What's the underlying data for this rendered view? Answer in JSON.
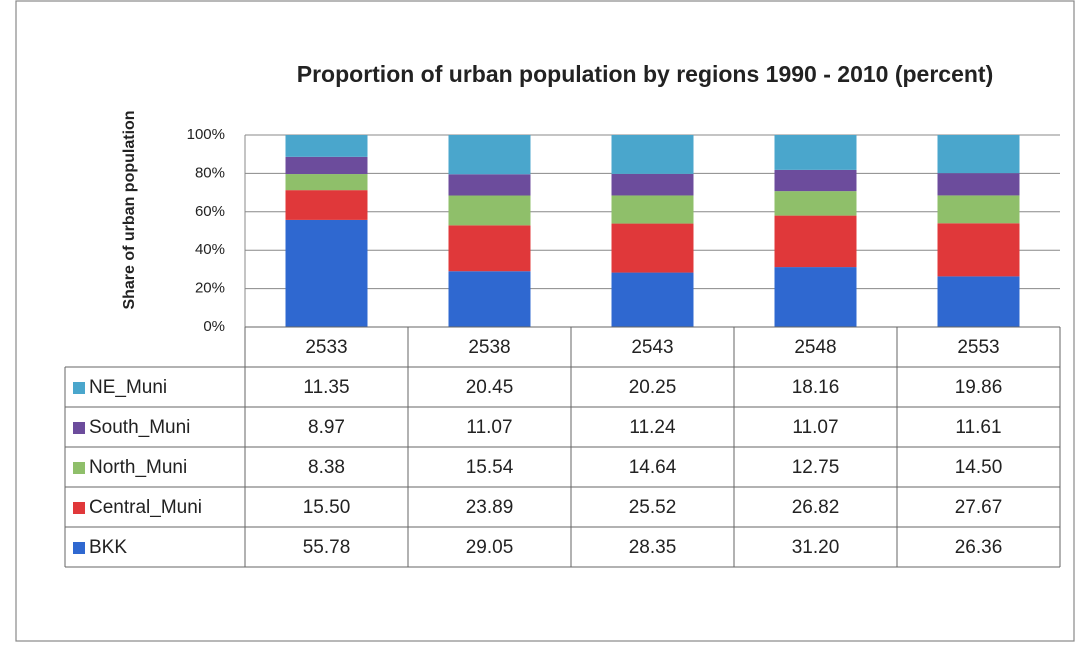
{
  "chart_data": {
    "type": "stacked-bar",
    "title": "Proportion of urban population  by regions 1990 - 2010 (percent)",
    "y_label": "Share of urban population",
    "categories": [
      "2533",
      "2538",
      "2543",
      "2548",
      "2553"
    ],
    "series": [
      {
        "name": "NE_Muni",
        "color": "#4aa6cc",
        "values": [
          11.35,
          20.45,
          20.25,
          18.16,
          19.86
        ],
        "value_labels": [
          "11.35",
          "20.45",
          "20.25",
          "18.16",
          "19.86"
        ]
      },
      {
        "name": "South_Muni",
        "color": "#6c4c9c",
        "values": [
          8.97,
          11.07,
          11.24,
          11.07,
          11.61
        ],
        "value_labels": [
          "8.97",
          "11.07",
          "11.24",
          "11.07",
          "11.61"
        ]
      },
      {
        "name": "North_Muni",
        "color": "#8fbf6a",
        "values": [
          8.38,
          15.54,
          14.64,
          12.75,
          14.5
        ],
        "value_labels": [
          "8.38",
          "15.54",
          "14.64",
          "12.75",
          "14.50"
        ]
      },
      {
        "name": "Central_Muni",
        "color": "#e0383a",
        "values": [
          15.5,
          23.89,
          25.52,
          26.82,
          27.67
        ],
        "value_labels": [
          "15.50",
          "23.89",
          "25.52",
          "26.82",
          "27.67"
        ]
      },
      {
        "name": "BKK",
        "color": "#2f68d0",
        "values": [
          55.78,
          29.05,
          28.35,
          31.2,
          26.36
        ],
        "value_labels": [
          "55.78",
          "29.05",
          "28.35",
          "31.20",
          "26.36"
        ]
      }
    ],
    "ylim": [
      0,
      100
    ],
    "yticks": [
      {
        "value": 0,
        "label": "0%"
      },
      {
        "value": 20,
        "label": "20%"
      },
      {
        "value": 40,
        "label": "40%"
      },
      {
        "value": 60,
        "label": "60%"
      },
      {
        "value": 80,
        "label": "80%"
      },
      {
        "value": 100,
        "label": "100%"
      }
    ],
    "grid": true
  }
}
